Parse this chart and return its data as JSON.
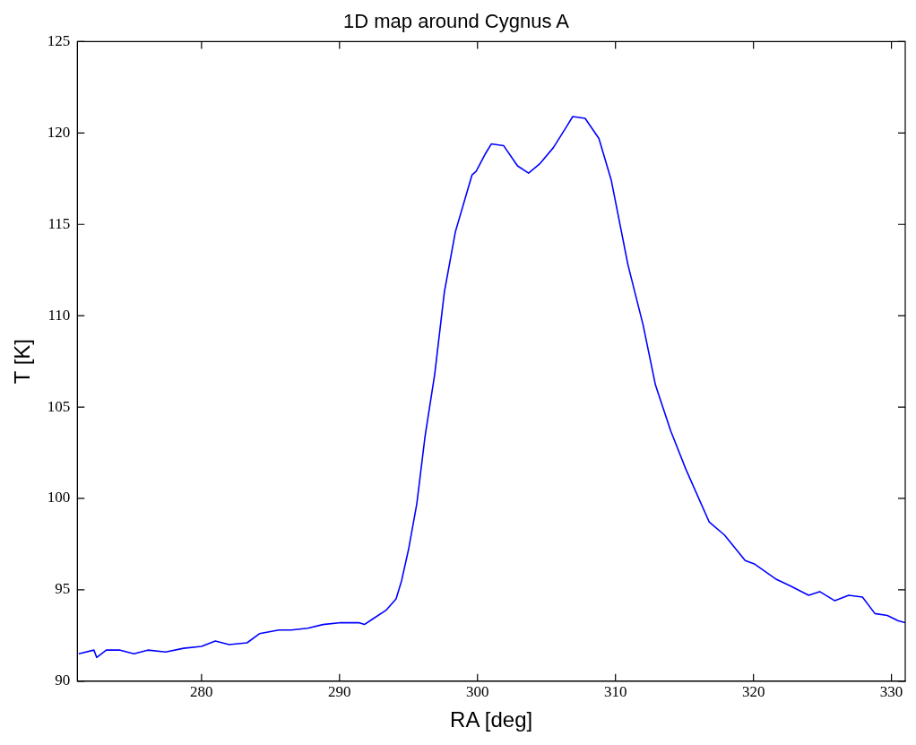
{
  "chart_data": {
    "type": "line",
    "title": "1D map around Cygnus A",
    "xlabel": "RA [deg]",
    "ylabel": "T [K]",
    "xlim": [
      271,
      331
    ],
    "xticks": [
      280,
      290,
      300,
      310,
      320,
      330
    ],
    "ylim": [
      90,
      125
    ],
    "yticks": [
      90,
      95,
      100,
      105,
      110,
      115,
      120,
      125
    ],
    "grid": false,
    "legend": false,
    "marker": "none",
    "line_style": "solid",
    "series": [
      {
        "color": "#0000ff",
        "x": [
          271.1,
          272.2,
          272.4,
          273.1,
          274.1,
          275.1,
          276.1,
          277.4,
          278.7,
          280,
          281,
          282,
          283.3,
          284.2,
          285.6,
          286.5,
          287.7,
          288.8,
          290.1,
          291.4,
          291.8,
          292.4,
          293.4,
          294.1,
          294.5,
          295.0,
          295.6,
          296.2,
          296.9,
          297.6,
          298.4,
          299.6,
          299.9,
          300.6,
          301.0,
          301.9,
          302.9,
          303.7,
          304.5,
          305.5,
          306.5,
          306.9,
          307.8,
          308.8,
          309.7,
          310.9,
          312.0,
          312.9,
          314.0,
          315.1,
          316.8,
          317.9,
          319.4,
          320.1,
          321.6,
          322.7,
          324.0,
          324.8,
          325.9,
          326.9,
          327.9,
          328.8,
          329.7,
          330.5,
          331.0
        ],
        "values": [
          91.5,
          91.7,
          91.3,
          91.7,
          91.7,
          91.5,
          91.7,
          91.6,
          91.8,
          91.9,
          92.2,
          92.0,
          92.1,
          92.6,
          92.8,
          92.8,
          92.9,
          93.1,
          93.2,
          93.2,
          93.1,
          93.4,
          93.9,
          94.5,
          95.5,
          97.2,
          99.7,
          103.4,
          106.8,
          111.3,
          114.6,
          117.7,
          117.9,
          118.9,
          119.4,
          119.3,
          118.2,
          117.8,
          118.3,
          119.2,
          120.4,
          120.9,
          120.8,
          119.7,
          117.4,
          112.8,
          109.5,
          106.2,
          103.7,
          101.6,
          98.7,
          98.0,
          96.6,
          96.4,
          95.6,
          95.2,
          94.7,
          94.9,
          94.4,
          94.7,
          94.6,
          93.7,
          93.6,
          93.3,
          93.2
        ]
      }
    ]
  }
}
